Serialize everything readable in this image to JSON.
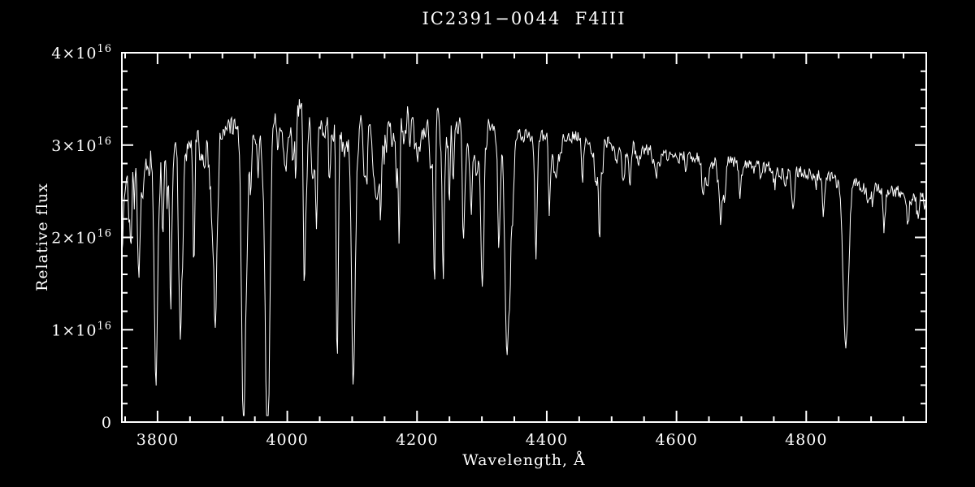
{
  "figure": {
    "background_color": "#000000",
    "foreground_color": "#ffffff"
  },
  "chart_data": {
    "type": "line",
    "title": "IC2391−0044  F4III",
    "xlabel": "Wavelength, Å",
    "ylabel": "Relative flux",
    "xlim": [
      3745,
      4985
    ],
    "ylim": [
      0,
      4
    ],
    "y_unit_label": "×10^16",
    "x_ticks": [
      {
        "value": 3800,
        "label": "3800"
      },
      {
        "value": 4000,
        "label": "4000"
      },
      {
        "value": 4200,
        "label": "4200"
      },
      {
        "value": 4400,
        "label": "4400"
      },
      {
        "value": 4600,
        "label": "4600"
      },
      {
        "value": 4800,
        "label": "4800"
      }
    ],
    "y_ticks": [
      {
        "value": 0,
        "label": "0"
      },
      {
        "value": 1,
        "label": "1×10^16"
      },
      {
        "value": 2,
        "label": "2×10^16"
      },
      {
        "value": 3,
        "label": "3×10^16"
      },
      {
        "value": 4,
        "label": "4×10^16"
      }
    ],
    "x_minor_step": 50,
    "y_minor_step": 0.2,
    "sample_step": 1.2,
    "continuum": [
      [
        3745,
        2.75
      ],
      [
        3765,
        3.0
      ],
      [
        3790,
        3.0
      ],
      [
        3830,
        3.1
      ],
      [
        3870,
        3.15
      ],
      [
        3910,
        3.2
      ],
      [
        3950,
        3.25
      ],
      [
        3990,
        3.35
      ],
      [
        4020,
        3.45
      ],
      [
        4060,
        3.4
      ],
      [
        4100,
        3.35
      ],
      [
        4150,
        3.4
      ],
      [
        4200,
        3.42
      ],
      [
        4250,
        3.35
      ],
      [
        4300,
        3.25
      ],
      [
        4340,
        3.15
      ],
      [
        4380,
        3.1
      ],
      [
        4430,
        3.1
      ],
      [
        4480,
        3.05
      ],
      [
        4520,
        3.0
      ],
      [
        4560,
        2.95
      ],
      [
        4600,
        2.9
      ],
      [
        4650,
        2.85
      ],
      [
        4700,
        2.8
      ],
      [
        4750,
        2.75
      ],
      [
        4800,
        2.7
      ],
      [
        4840,
        2.65
      ],
      [
        4870,
        2.6
      ],
      [
        4900,
        2.55
      ],
      [
        4940,
        2.5
      ],
      [
        4985,
        2.5
      ]
    ],
    "absorption_lines": [
      {
        "center": 3745,
        "min_flux": 1.9,
        "width": 2.0
      },
      {
        "center": 3771,
        "min_flux": 1.6,
        "width": 2.2
      },
      {
        "center": 3798,
        "min_flux": 1.1,
        "width": 2.4
      },
      {
        "center": 3820,
        "min_flux": 1.9,
        "width": 1.6
      },
      {
        "center": 3835,
        "min_flux": 1.0,
        "width": 2.4
      },
      {
        "center": 3856,
        "min_flux": 1.8,
        "width": 1.4
      },
      {
        "center": 3889,
        "min_flux": 1.3,
        "width": 2.6
      },
      {
        "center": 3933,
        "min_flux": 0.3,
        "width": 3.2
      },
      {
        "center": 3970,
        "min_flux": 0.32,
        "width": 3.2
      },
      {
        "center": 4026,
        "min_flux": 2.3,
        "width": 1.6
      },
      {
        "center": 4045,
        "min_flux": 2.35,
        "width": 1.4
      },
      {
        "center": 4077,
        "min_flux": 1.15,
        "width": 1.6
      },
      {
        "center": 4102,
        "min_flux": 0.95,
        "width": 3.4
      },
      {
        "center": 4144,
        "min_flux": 2.3,
        "width": 1.6
      },
      {
        "center": 4172,
        "min_flux": 2.35,
        "width": 1.5
      },
      {
        "center": 4227,
        "min_flux": 2.1,
        "width": 1.6
      },
      {
        "center": 4250,
        "min_flux": 2.45,
        "width": 1.3
      },
      {
        "center": 4271,
        "min_flux": 2.25,
        "width": 1.5
      },
      {
        "center": 4300,
        "min_flux": 2.2,
        "width": 2.2
      },
      {
        "center": 4326,
        "min_flux": 2.3,
        "width": 1.5
      },
      {
        "center": 4340,
        "min_flux": 1.0,
        "width": 3.4
      },
      {
        "center": 4383,
        "min_flux": 2.15,
        "width": 1.7
      },
      {
        "center": 4404,
        "min_flux": 2.3,
        "width": 1.5
      },
      {
        "center": 4455,
        "min_flux": 2.55,
        "width": 1.3
      },
      {
        "center": 4481,
        "min_flux": 2.5,
        "width": 1.5
      },
      {
        "center": 4528,
        "min_flux": 2.55,
        "width": 1.4
      },
      {
        "center": 4668,
        "min_flux": 2.5,
        "width": 1.3
      },
      {
        "center": 4861,
        "min_flux": 0.87,
        "width": 4.2
      },
      {
        "center": 4920,
        "min_flux": 2.1,
        "width": 1.8
      },
      {
        "center": 4957,
        "min_flux": 2.2,
        "width": 1.5
      }
    ],
    "noise": {
      "seed": 20391,
      "amp_blue": 0.1,
      "amp_red": 0.065,
      "micro_line_count": 340
    },
    "legend": null,
    "grid": false
  }
}
